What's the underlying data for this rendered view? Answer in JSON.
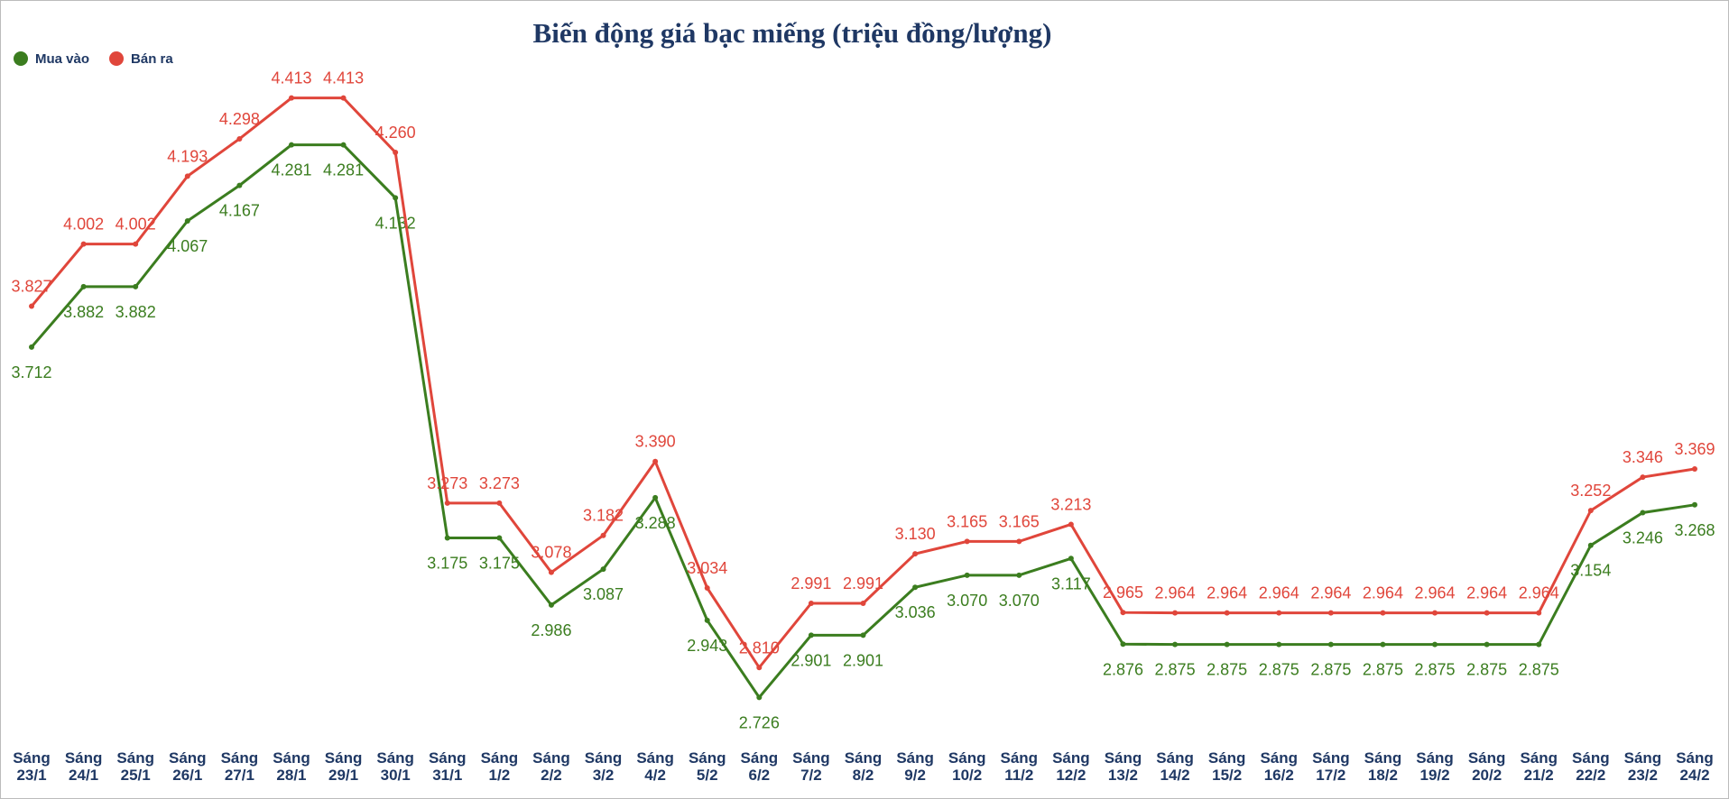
{
  "chart_data": {
    "type": "line",
    "title": "Biến động giá bạc miếng (triệu đồng/lượng)",
    "categories": [
      "Sáng 23/1",
      "Sáng 24/1",
      "Sáng 25/1",
      "Sáng 26/1",
      "Sáng 27/1",
      "Sáng 28/1",
      "Sáng 29/1",
      "Sáng 30/1",
      "Sáng 31/1",
      "Sáng 1/2",
      "Sáng 2/2",
      "Sáng 3/2",
      "Sáng 4/2",
      "Sáng 5/2",
      "Sáng 6/2",
      "Sáng 7/2",
      "Sáng 8/2",
      "Sáng 9/2",
      "Sáng 10/2",
      "Sáng 11/2",
      "Sáng 12/2",
      "Sáng 13/2",
      "Sáng 14/2",
      "Sáng 15/2",
      "Sáng 16/2",
      "Sáng 17/2",
      "Sáng 18/2",
      "Sáng 19/2",
      "Sáng 20/2",
      "Sáng 21/2",
      "Sáng 22/2",
      "Sáng 23/2",
      "Sáng 24/2"
    ],
    "series": [
      {
        "name": "Mua vào",
        "color": "#3b7d1f",
        "values": [
          3.712,
          3.882,
          3.882,
          4.067,
          4.167,
          4.281,
          4.281,
          4.132,
          3.175,
          3.175,
          2.986,
          3.087,
          3.288,
          2.943,
          2.726,
          2.901,
          2.901,
          3.036,
          3.07,
          3.07,
          3.117,
          2.876,
          2.875,
          2.875,
          2.875,
          2.875,
          2.875,
          2.875,
          2.875,
          2.875,
          3.154,
          3.246,
          3.268
        ],
        "value_labels": [
          "3.712",
          "3.882",
          "3.882",
          "4.067",
          "4.167",
          "4.281",
          "4.281",
          "4.132",
          "3.175",
          "3.175",
          "2.986",
          "3.087",
          "3.288",
          "2.943",
          "2.726",
          "2.901",
          "2.901",
          "3.036",
          "3.070",
          "3.070",
          "3.117",
          "2.876",
          "2.875",
          "2.875",
          "2.875",
          "2.875",
          "2.875",
          "2.875",
          "2.875",
          "2.875",
          "3.154",
          "3.246",
          "3.268"
        ]
      },
      {
        "name": "Bán ra",
        "color": "#e0463b",
        "values": [
          3.827,
          4.002,
          4.002,
          4.193,
          4.298,
          4.413,
          4.413,
          4.26,
          3.273,
          3.273,
          3.078,
          3.182,
          3.39,
          3.034,
          2.81,
          2.991,
          2.991,
          3.13,
          3.165,
          3.165,
          3.213,
          2.965,
          2.964,
          2.964,
          2.964,
          2.964,
          2.964,
          2.964,
          2.964,
          2.964,
          3.252,
          3.346,
          3.369
        ],
        "value_labels": [
          "3.827",
          "4.002",
          "4.002",
          "4.193",
          "4.298",
          "4.413",
          "4.413",
          "4.260",
          "3.273",
          "3.273",
          "3.078",
          "3.182",
          "3.390",
          "3.034",
          "2.810",
          "2.991",
          "2.991",
          "3.130",
          "3.165",
          "3.165",
          "3.213",
          "2.965",
          "2.964",
          "2.964",
          "2.964",
          "2.964",
          "2.964",
          "2.964",
          "2.964",
          "2.964",
          "3.252",
          "3.346",
          "3.369"
        ]
      }
    ],
    "ylim": [
      2.6,
      4.6
    ],
    "legend": "top-left"
  }
}
